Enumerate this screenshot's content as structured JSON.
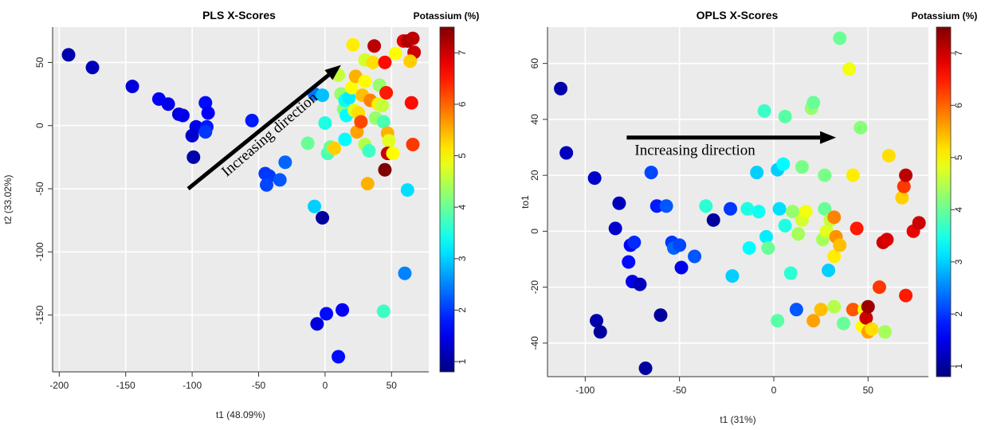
{
  "chart_data": [
    {
      "type": "scatter",
      "title": "PLS X-Scores",
      "xlabel": "t1 (48.09%)",
      "ylabel": "t2 (33.02%)",
      "xlim": [
        -205,
        78
      ],
      "ylim": [
        -195,
        78
      ],
      "xticks": [
        -200,
        -150,
        -100,
        -50,
        0,
        50
      ],
      "yticks": [
        -150,
        -100,
        -50,
        0,
        50
      ],
      "grid": true,
      "colorbar": {
        "title": "Potassium (%)",
        "min": 0.8,
        "max": 7.5,
        "ticks": [
          1,
          2,
          3,
          4,
          5,
          6,
          7
        ],
        "colormap": "jet"
      },
      "annotation": {
        "text": "Increasing direction",
        "arrow_from": [
          -103,
          -50
        ],
        "arrow_to": [
          12,
          48
        ]
      },
      "points": [
        {
          "x": -193,
          "y": 56,
          "k": 1.1
        },
        {
          "x": -175,
          "y": 46,
          "k": 1.2
        },
        {
          "x": -145,
          "y": 31,
          "k": 1.4
        },
        {
          "x": -125,
          "y": 21,
          "k": 1.6
        },
        {
          "x": -118,
          "y": 17,
          "k": 1.5
        },
        {
          "x": -110,
          "y": 9,
          "k": 1.4
        },
        {
          "x": -107,
          "y": 8,
          "k": 1.5
        },
        {
          "x": -97,
          "y": -1,
          "k": 1.5
        },
        {
          "x": -90,
          "y": 18,
          "k": 1.7
        },
        {
          "x": -88,
          "y": 10,
          "k": 1.6
        },
        {
          "x": -89,
          "y": -1,
          "k": 1.8
        },
        {
          "x": -90,
          "y": -5,
          "k": 2.0
        },
        {
          "x": -100,
          "y": -8,
          "k": 1.3
        },
        {
          "x": -99,
          "y": -25,
          "k": 1.1
        },
        {
          "x": -55,
          "y": 4,
          "k": 1.8
        },
        {
          "x": -45,
          "y": -38,
          "k": 2.0
        },
        {
          "x": -42,
          "y": -40,
          "k": 2.0
        },
        {
          "x": -44,
          "y": -47,
          "k": 2.1
        },
        {
          "x": -34,
          "y": -43,
          "k": 2.2
        },
        {
          "x": -30,
          "y": -29,
          "k": 2.3
        },
        {
          "x": -13,
          "y": -14,
          "k": 4.0
        },
        {
          "x": -8,
          "y": -64,
          "k": 3.0
        },
        {
          "x": -2,
          "y": -73,
          "k": 1.0
        },
        {
          "x": -8,
          "y": 25,
          "k": 2.4
        },
        {
          "x": -2,
          "y": 24,
          "k": 2.9
        },
        {
          "x": 0,
          "y": 2,
          "k": 3.5
        },
        {
          "x": 2,
          "y": -22,
          "k": 3.8
        },
        {
          "x": 4,
          "y": -17,
          "k": 4.0
        },
        {
          "x": 7,
          "y": -18,
          "k": 5.3
        },
        {
          "x": 10,
          "y": 40,
          "k": 4.6
        },
        {
          "x": 12,
          "y": 25,
          "k": 4.3
        },
        {
          "x": 14,
          "y": 13,
          "k": 4.2
        },
        {
          "x": 15,
          "y": 20,
          "k": 3.4
        },
        {
          "x": 16,
          "y": 8,
          "k": 3.3
        },
        {
          "x": 18,
          "y": 22,
          "k": 3.2
        },
        {
          "x": 15,
          "y": -11,
          "k": 3.3
        },
        {
          "x": 20,
          "y": 30,
          "k": 5.0
        },
        {
          "x": 22,
          "y": 12,
          "k": 4.8
        },
        {
          "x": 21,
          "y": 64,
          "k": 5.1
        },
        {
          "x": 23,
          "y": 39,
          "k": 5.5
        },
        {
          "x": 25,
          "y": 10,
          "k": 5.2
        },
        {
          "x": 24,
          "y": -5,
          "k": 5.6
        },
        {
          "x": 27,
          "y": 3,
          "k": 6.2
        },
        {
          "x": 28,
          "y": 24,
          "k": 5.4
        },
        {
          "x": 30,
          "y": 52,
          "k": 4.7
        },
        {
          "x": 30,
          "y": 35,
          "k": 5.0
        },
        {
          "x": 32,
          "y": -46,
          "k": 5.5
        },
        {
          "x": 30,
          "y": -15,
          "k": 4.5
        },
        {
          "x": 33,
          "y": -20,
          "k": 3.7
        },
        {
          "x": 34,
          "y": 20,
          "k": 5.8
        },
        {
          "x": 36,
          "y": 50,
          "k": 5.2
        },
        {
          "x": 37,
          "y": 63,
          "k": 7.1
        },
        {
          "x": 38,
          "y": 6,
          "k": 4.3
        },
        {
          "x": 40,
          "y": 17,
          "k": 5.1
        },
        {
          "x": 41,
          "y": 32,
          "k": 4.3
        },
        {
          "x": 43,
          "y": 16,
          "k": 4.6
        },
        {
          "x": 44,
          "y": 3,
          "k": 3.8
        },
        {
          "x": 45,
          "y": 50,
          "k": 6.6
        },
        {
          "x": 46,
          "y": 26,
          "k": 6.5
        },
        {
          "x": 47,
          "y": -6,
          "k": 5.5
        },
        {
          "x": 48,
          "y": -12,
          "k": 4.8
        },
        {
          "x": 47,
          "y": -22,
          "k": 7.0
        },
        {
          "x": 45,
          "y": -35,
          "k": 7.5
        },
        {
          "x": 44,
          "y": -147,
          "k": 3.7
        },
        {
          "x": 51,
          "y": -22,
          "k": 5.0
        },
        {
          "x": 53,
          "y": 57,
          "k": 5.0
        },
        {
          "x": 59,
          "y": 67,
          "k": 6.8
        },
        {
          "x": 62,
          "y": 67,
          "k": 7.2
        },
        {
          "x": 66,
          "y": 69,
          "k": 7.1
        },
        {
          "x": 67,
          "y": 58,
          "k": 7.0
        },
        {
          "x": 64,
          "y": 51,
          "k": 5.3
        },
        {
          "x": 65,
          "y": 18,
          "k": 6.6
        },
        {
          "x": 66,
          "y": -15,
          "k": 6.3
        },
        {
          "x": 62,
          "y": -51,
          "k": 3.1
        },
        {
          "x": 60,
          "y": -117,
          "k": 2.5
        },
        {
          "x": 1,
          "y": -149,
          "k": 1.7
        },
        {
          "x": -6,
          "y": -157,
          "k": 1.4
        },
        {
          "x": 13,
          "y": -146,
          "k": 1.6
        },
        {
          "x": 10,
          "y": -183,
          "k": 1.7
        }
      ]
    },
    {
      "type": "scatter",
      "title": "OPLS X-Scores",
      "xlabel": "t1 (31%)",
      "ylabel": "to1",
      "xlim": [
        -120,
        82
      ],
      "ylim": [
        -52,
        73
      ],
      "xticks": [
        -100,
        -50,
        0,
        50
      ],
      "yticks": [
        -40,
        -20,
        0,
        20,
        40,
        60
      ],
      "grid": true,
      "colorbar": {
        "title": "Potassium (%)",
        "min": 0.8,
        "max": 7.5,
        "ticks": [
          1,
          2,
          3,
          4,
          5,
          6,
          7
        ],
        "colormap": "jet"
      },
      "annotation": {
        "text": "Increasing direction",
        "arrow_from": [
          -78,
          33.5
        ],
        "arrow_to": [
          33,
          33.5
        ]
      },
      "points": [
        {
          "x": -113,
          "y": 51,
          "k": 1.1
        },
        {
          "x": -110,
          "y": 28,
          "k": 1.2
        },
        {
          "x": -95,
          "y": 19,
          "k": 1.3
        },
        {
          "x": -94,
          "y": -32,
          "k": 1.1
        },
        {
          "x": -92,
          "y": -36,
          "k": 1.0
        },
        {
          "x": -82,
          "y": 10,
          "k": 1.2
        },
        {
          "x": -84,
          "y": 1,
          "k": 1.3
        },
        {
          "x": -76,
          "y": -5,
          "k": 1.6
        },
        {
          "x": -74,
          "y": -4,
          "k": 1.9
        },
        {
          "x": -77,
          "y": -11,
          "k": 1.7
        },
        {
          "x": -75,
          "y": -18,
          "k": 1.5
        },
        {
          "x": -71,
          "y": -19,
          "k": 1.2
        },
        {
          "x": -65,
          "y": 21,
          "k": 2.1
        },
        {
          "x": -62,
          "y": 9,
          "k": 1.8
        },
        {
          "x": -57,
          "y": 9,
          "k": 2.2
        },
        {
          "x": -60,
          "y": -30,
          "k": 1.0
        },
        {
          "x": -68,
          "y": -49,
          "k": 1.0
        },
        {
          "x": -54,
          "y": -4,
          "k": 2.0
        },
        {
          "x": -53,
          "y": -6,
          "k": 2.3
        },
        {
          "x": -50,
          "y": -5,
          "k": 2.1
        },
        {
          "x": -49,
          "y": -13,
          "k": 1.5
        },
        {
          "x": -42,
          "y": -9,
          "k": 2.2
        },
        {
          "x": -36,
          "y": 9,
          "k": 3.6
        },
        {
          "x": -32,
          "y": 4,
          "k": 1.0
        },
        {
          "x": -23,
          "y": 8,
          "k": 2.0
        },
        {
          "x": -22,
          "y": -16,
          "k": 3.0
        },
        {
          "x": -14,
          "y": 8,
          "k": 3.5
        },
        {
          "x": -13,
          "y": -6,
          "k": 3.3
        },
        {
          "x": -9,
          "y": 21,
          "k": 3.0
        },
        {
          "x": -8,
          "y": 7,
          "k": 3.4
        },
        {
          "x": -5,
          "y": 43,
          "k": 3.7
        },
        {
          "x": -4,
          "y": -2,
          "k": 3.2
        },
        {
          "x": -3,
          "y": -6,
          "k": 4.0
        },
        {
          "x": 2,
          "y": 22,
          "k": 3.0
        },
        {
          "x": 3,
          "y": 8,
          "k": 3.1
        },
        {
          "x": 2,
          "y": -32,
          "k": 3.9
        },
        {
          "x": 5,
          "y": 24,
          "k": 3.3
        },
        {
          "x": 6,
          "y": 41,
          "k": 3.9
        },
        {
          "x": 6,
          "y": 2,
          "k": 3.5
        },
        {
          "x": 9,
          "y": -15,
          "k": 3.6
        },
        {
          "x": 10,
          "y": 7,
          "k": 4.3
        },
        {
          "x": 12,
          "y": -28,
          "k": 2.2
        },
        {
          "x": 13,
          "y": -1,
          "k": 4.4
        },
        {
          "x": 15,
          "y": 23,
          "k": 4.1
        },
        {
          "x": 15,
          "y": 4,
          "k": 4.7
        },
        {
          "x": 17,
          "y": 7,
          "k": 4.9
        },
        {
          "x": 20,
          "y": 44,
          "k": 4.3
        },
        {
          "x": 21,
          "y": 46,
          "k": 4.0
        },
        {
          "x": 21,
          "y": -32,
          "k": 5.6
        },
        {
          "x": 25,
          "y": -28,
          "k": 5.4
        },
        {
          "x": 26,
          "y": -3,
          "k": 4.4
        },
        {
          "x": 27,
          "y": 20,
          "k": 4.1
        },
        {
          "x": 27,
          "y": 8,
          "k": 4.0
        },
        {
          "x": 28,
          "y": 0,
          "k": 4.8
        },
        {
          "x": 29,
          "y": -14,
          "k": 3.0
        },
        {
          "x": 30,
          "y": 4,
          "k": 4.6
        },
        {
          "x": 32,
          "y": 5,
          "k": 5.8
        },
        {
          "x": 32,
          "y": -9,
          "k": 5.1
        },
        {
          "x": 32,
          "y": -27,
          "k": 4.5
        },
        {
          "x": 33,
          "y": -2,
          "k": 5.7
        },
        {
          "x": 35,
          "y": -5,
          "k": 5.4
        },
        {
          "x": 35,
          "y": 69,
          "k": 4.0
        },
        {
          "x": 37,
          "y": -33,
          "k": 4.0
        },
        {
          "x": 40,
          "y": 58,
          "k": 4.9
        },
        {
          "x": 42,
          "y": 20,
          "k": 5.1
        },
        {
          "x": 42,
          "y": -28,
          "k": 6.1
        },
        {
          "x": 44,
          "y": 1,
          "k": 6.5
        },
        {
          "x": 46,
          "y": 37,
          "k": 4.2
        },
        {
          "x": 47,
          "y": -34,
          "k": 5.0
        },
        {
          "x": 48,
          "y": -28,
          "k": 4.9
        },
        {
          "x": 49,
          "y": -31,
          "k": 7.0
        },
        {
          "x": 50,
          "y": -27,
          "k": 7.3
        },
        {
          "x": 50,
          "y": -36,
          "k": 5.6
        },
        {
          "x": 52,
          "y": -35,
          "k": 5.2
        },
        {
          "x": 56,
          "y": -20,
          "k": 6.3
        },
        {
          "x": 58,
          "y": -4,
          "k": 7.0
        },
        {
          "x": 60,
          "y": -3,
          "k": 6.9
        },
        {
          "x": 59,
          "y": -36,
          "k": 4.4
        },
        {
          "x": 61,
          "y": 27,
          "k": 5.2
        },
        {
          "x": 68,
          "y": 12,
          "k": 5.3
        },
        {
          "x": 69,
          "y": 16,
          "k": 6.3
        },
        {
          "x": 70,
          "y": 20,
          "k": 7.1
        },
        {
          "x": 70,
          "y": -23,
          "k": 6.5
        },
        {
          "x": 74,
          "y": 0,
          "k": 6.8
        },
        {
          "x": 77,
          "y": 3,
          "k": 7.0
        }
      ]
    }
  ]
}
